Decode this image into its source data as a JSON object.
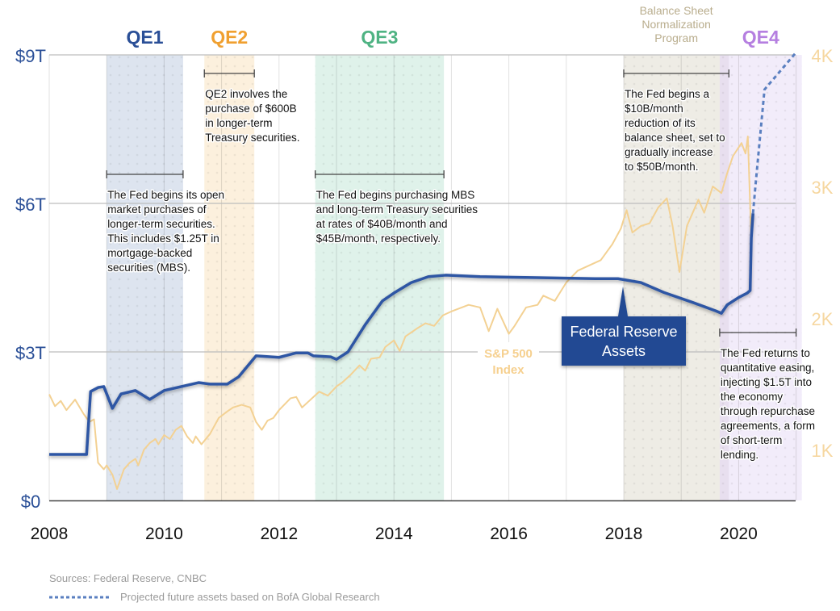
{
  "chart_data": {
    "type": "line",
    "title": "",
    "xlabel": "",
    "ylabel": "",
    "xlim": [
      2008,
      2021.05
    ],
    "ylim_left": [
      0,
      9
    ],
    "ylim_right": [
      0,
      4000
    ],
    "grid": true,
    "x_ticks": [
      "2008",
      "2010",
      "2012",
      "2014",
      "2016",
      "2018",
      "2020"
    ],
    "x_tick_values": [
      2008,
      2010,
      2012,
      2014,
      2016,
      2018,
      2020
    ],
    "y_left_ticks": [
      "$0",
      "$3T",
      "$6T",
      "$9T"
    ],
    "y_left_tick_values": [
      0,
      3,
      6,
      9
    ],
    "y_right_ticks": [
      "1K",
      "2K",
      "3K",
      "4K"
    ],
    "y_right_tick_values": [
      1000,
      2000,
      3000,
      4000
    ],
    "colors": {
      "fed": "#2f56a4",
      "sp500": "#f3d193",
      "left_axis": "#2a4f97",
      "right_axis": "#f6d7a0"
    },
    "series": [
      {
        "name": "Federal Reserve Assets",
        "axis": "left",
        "unit": "trillions USD",
        "x": [
          2008.0,
          2008.65,
          2008.72,
          2008.85,
          2008.95,
          2009.1,
          2009.25,
          2009.5,
          2009.75,
          2010.0,
          2010.3,
          2010.6,
          2010.8,
          2011.1,
          2011.3,
          2011.6,
          2012.0,
          2012.3,
          2012.5,
          2012.6,
          2012.9,
          2013.0,
          2013.2,
          2013.5,
          2013.8,
          2014.0,
          2014.3,
          2014.6,
          2014.9,
          2015.5,
          2016.5,
          2017.5,
          2017.9,
          2018.3,
          2018.7,
          2019.2,
          2019.6,
          2019.7,
          2019.8,
          2020.0,
          2020.15,
          2020.2,
          2020.22,
          2020.25
        ],
        "y": [
          0.93,
          0.93,
          2.2,
          2.28,
          2.3,
          1.86,
          2.15,
          2.22,
          2.04,
          2.22,
          2.3,
          2.38,
          2.35,
          2.35,
          2.5,
          2.92,
          2.89,
          2.98,
          2.98,
          2.92,
          2.9,
          2.85,
          3.0,
          3.55,
          4.03,
          4.19,
          4.4,
          4.52,
          4.55,
          4.52,
          4.5,
          4.48,
          4.48,
          4.4,
          4.2,
          4.0,
          3.83,
          3.78,
          3.95,
          4.1,
          4.19,
          4.24,
          5.3,
          5.8
        ]
      },
      {
        "name": "Projected future assets based on BofA Global Research",
        "axis": "left",
        "style": "dotted",
        "x": [
          2020.25,
          2020.3,
          2020.45,
          2021.0
        ],
        "y": [
          5.8,
          6.45,
          8.3,
          9.05
        ]
      },
      {
        "name": "S&P 500 Index",
        "axis": "right",
        "x": [
          2008.0,
          2008.1,
          2008.2,
          2008.3,
          2008.45,
          2008.6,
          2008.7,
          2008.78,
          2008.85,
          2008.95,
          2009.0,
          2009.1,
          2009.18,
          2009.3,
          2009.4,
          2009.5,
          2009.55,
          2009.65,
          2009.75,
          2009.85,
          2009.9,
          2010.0,
          2010.1,
          2010.2,
          2010.3,
          2010.4,
          2010.5,
          2010.55,
          2010.65,
          2010.8,
          2010.95,
          2011.1,
          2011.2,
          2011.35,
          2011.5,
          2011.6,
          2011.7,
          2011.8,
          2011.9,
          2012.0,
          2012.2,
          2012.3,
          2012.4,
          2012.5,
          2012.7,
          2012.85,
          2013.0,
          2013.1,
          2013.25,
          2013.4,
          2013.5,
          2013.6,
          2013.75,
          2013.85,
          2014.0,
          2014.1,
          2014.2,
          2014.4,
          2014.55,
          2014.7,
          2014.85,
          2015.0,
          2015.3,
          2015.5,
          2015.65,
          2015.8,
          2016.0,
          2016.1,
          2016.3,
          2016.5,
          2016.6,
          2016.8,
          2016.9,
          2017.0,
          2017.2,
          2017.4,
          2017.6,
          2017.8,
          2017.95,
          2018.05,
          2018.15,
          2018.3,
          2018.45,
          2018.6,
          2018.75,
          2018.85,
          2018.97,
          2019.1,
          2019.3,
          2019.4,
          2019.55,
          2019.7,
          2019.8,
          2019.9,
          2020.05,
          2020.12,
          2020.16,
          2020.22
        ],
        "y": [
          1420,
          1330,
          1370,
          1300,
          1380,
          1270,
          1210,
          1230,
          900,
          850,
          880,
          810,
          700,
          850,
          900,
          930,
          880,
          1000,
          1050,
          1080,
          1040,
          1110,
          1080,
          1150,
          1180,
          1100,
          1050,
          1100,
          1040,
          1120,
          1240,
          1290,
          1320,
          1340,
          1320,
          1210,
          1150,
          1220,
          1240,
          1300,
          1390,
          1400,
          1320,
          1360,
          1440,
          1410,
          1480,
          1510,
          1570,
          1640,
          1600,
          1690,
          1700,
          1780,
          1830,
          1750,
          1860,
          1920,
          1960,
          1940,
          2020,
          2050,
          2100,
          2080,
          1900,
          2070,
          1880,
          1940,
          2080,
          2100,
          2170,
          2130,
          2200,
          2270,
          2360,
          2400,
          2440,
          2560,
          2680,
          2820,
          2650,
          2700,
          2720,
          2840,
          2910,
          2700,
          2350,
          2700,
          2900,
          2800,
          3000,
          2950,
          3100,
          3230,
          3330,
          3250,
          3380,
          2600
        ]
      }
    ],
    "periods": [
      {
        "label": "QE1",
        "start": 2009.0,
        "end": 2010.33,
        "color": "#2a4f97",
        "fill": "#dde4ef"
      },
      {
        "label": "QE2",
        "start": 2010.7,
        "end": 2011.57,
        "color": "#f0a030",
        "fill": "#fcf0dd"
      },
      {
        "label": "QE3",
        "start": 2012.63,
        "end": 2014.87,
        "color": "#4fb383",
        "fill": "#dff2ea"
      },
      {
        "label": "Balance Sheet Normalization Program",
        "lines": [
          "Balance Sheet",
          "Normalization",
          "Program"
        ],
        "start": 2018.0,
        "end": 2019.83,
        "color": "#b9ad8d",
        "fill": "#eeece5"
      },
      {
        "label": "QE4",
        "start": 2019.67,
        "end": 2021.1,
        "color": "#b57fe0",
        "fill": "#f2ecfa"
      }
    ],
    "annotations": [
      {
        "start": 2009.0,
        "end": 2010.33,
        "lines": [
          "The Fed begins its open",
          "market purchases of",
          "longer-term securities.",
          "This includes $1.25T in",
          "mortgage-backed",
          "securities (MBS)."
        ]
      },
      {
        "start": 2010.7,
        "end": 2011.57,
        "lines": [
          "QE2 involves the",
          "purchase of $600B",
          "in longer-term",
          "Treasury securities."
        ]
      },
      {
        "start": 2012.63,
        "end": 2014.87,
        "lines": [
          "The Fed begins purchasing MBS",
          "and long-term Treasury securities",
          "at rates of $40B/month and",
          "$45B/month, respectively."
        ]
      },
      {
        "start": 2018.0,
        "end": 2019.83,
        "lines": [
          "The Fed begins a",
          "$10B/month",
          "reduction of its",
          "balance sheet, set to",
          "gradually increase",
          "to $50B/month."
        ]
      },
      {
        "start": 2019.67,
        "end": 2021.0,
        "lines": [
          "The Fed returns to",
          "quantitative easing,",
          "injecting $1.5T into",
          "the economy",
          "through repurchase",
          "agreements, a form",
          "of short-term",
          "lending."
        ]
      }
    ],
    "series_labels": {
      "fed": [
        "Federal Reserve",
        "Assets"
      ],
      "sp500": [
        "S&P 500",
        "Index"
      ]
    }
  },
  "footer": {
    "sources": "Sources: Federal Reserve, CNBC",
    "legend_projected": "Projected future assets based on BofA Global Research"
  }
}
